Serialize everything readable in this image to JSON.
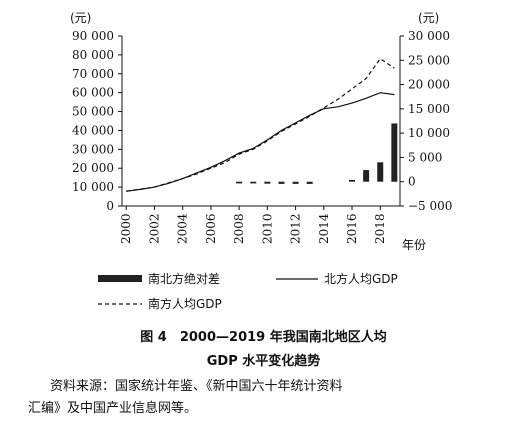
{
  "chart_data": {
    "type": "bar+line",
    "left_unit": "(元)",
    "right_unit": "(元)",
    "x_unit": "年份",
    "x_ticks": [
      2000,
      2002,
      2004,
      2006,
      2008,
      2010,
      2012,
      2014,
      2016,
      2018
    ],
    "y_left_ticks": [
      "0",
      "10 000",
      "20 000",
      "30 000",
      "40 000",
      "50 000",
      "60 000",
      "70 000",
      "80 000",
      "90 000"
    ],
    "y_right_ticks": [
      "−5 000",
      "0",
      "5 000",
      "10 000",
      "15 000",
      "20 000",
      "25 000",
      "30 000"
    ],
    "ylim_left": [
      0,
      90000
    ],
    "ylim_right": [
      -5000,
      30000
    ],
    "xlim": [
      1999.7,
      2019.4
    ],
    "series": [
      {
        "name": "南北方绝对差",
        "kind": "bar",
        "axis": "right",
        "x": [
          2008,
          2009,
          2010,
          2011,
          2012,
          2013,
          2016,
          2017,
          2018,
          2019
        ],
        "values": [
          -350,
          -350,
          -400,
          -450,
          -450,
          -450,
          350,
          2400,
          4000,
          12000
        ]
      },
      {
        "name": "北方人均GDP",
        "kind": "line",
        "style": "solid",
        "axis": "left",
        "x": [
          2000,
          2001,
          2002,
          2003,
          2004,
          2005,
          2006,
          2007,
          2008,
          2009,
          2010,
          2011,
          2012,
          2013,
          2014,
          2015,
          2016,
          2017,
          2018,
          2019
        ],
        "values": [
          7800,
          8800,
          10000,
          12000,
          14500,
          17500,
          20500,
          24000,
          28000,
          30500,
          35000,
          40000,
          44000,
          48000,
          51500,
          52500,
          54500,
          57000,
          60000,
          59000
        ]
      },
      {
        "name": "南方人均GDP",
        "kind": "line",
        "style": "dashed",
        "axis": "left",
        "x": [
          2000,
          2001,
          2002,
          2003,
          2004,
          2005,
          2006,
          2007,
          2008,
          2009,
          2010,
          2011,
          2012,
          2013,
          2014,
          2015,
          2016,
          2017,
          2018,
          2019
        ],
        "values": [
          7900,
          8900,
          10000,
          12300,
          14500,
          17000,
          20000,
          23000,
          27500,
          30000,
          34500,
          39500,
          43500,
          47500,
          52000,
          56500,
          62000,
          67500,
          78000,
          73000
        ]
      }
    ],
    "legend": [
      "南北方绝对差",
      "北方人均GDP",
      "南方人均GDP"
    ],
    "legend_placement": "bottom",
    "grid": false
  },
  "caption": {
    "line1": "图 4　2000—2019 年我国南北地区人均",
    "line2": "GDP 水平变化趋势"
  },
  "source": {
    "line1": "资料来源：国家统计年鉴、《新中国六十年统计资料",
    "line2": "汇编》及中国产业信息网等。"
  }
}
